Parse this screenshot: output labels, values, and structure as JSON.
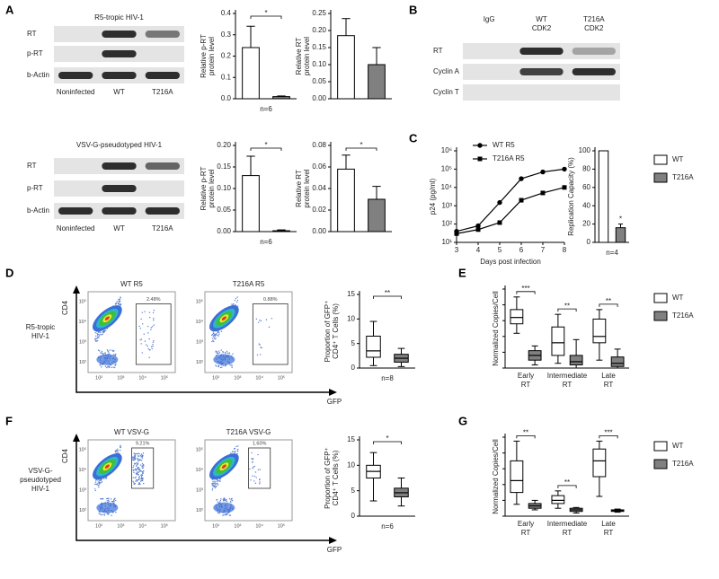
{
  "chart_data": [
    {
      "type": "bar",
      "ylabel": [
        "Relative p-RT",
        "protein level"
      ],
      "values": [
        0.24,
        0.01
      ],
      "errors": [
        0.1,
        0.003
      ],
      "colors": [
        "#ffffff",
        "#808080"
      ],
      "ylim": [
        0,
        0.4
      ],
      "yticks": [
        {
          "value": 0,
          "label": "0.0"
        },
        0.1,
        0.2,
        0.3,
        0.4
      ],
      "significance": "*",
      "xlabel": "n=6"
    },
    {
      "type": "bar",
      "ylabel": [
        "Relative RT",
        "protein level"
      ],
      "values": [
        0.185,
        0.1
      ],
      "errors": [
        0.05,
        0.05
      ],
      "colors": [
        "#ffffff",
        "#808080"
      ],
      "ylim": [
        0,
        0.25
      ],
      "yticks": [
        {
          "value": 0,
          "label": "0.00"
        },
        0.05,
        {
          "value": 0.1,
          "label": "0.10"
        },
        0.15,
        {
          "value": 0.2,
          "label": "0.20"
        },
        0.25
      ]
    },
    {
      "type": "bar",
      "ylabel": [
        "Relative p-RT",
        "protein level"
      ],
      "values": [
        0.13,
        0.002
      ],
      "errors": [
        0.045,
        0.002
      ],
      "colors": [
        "#ffffff",
        "#808080"
      ],
      "ylim": [
        0,
        0.2
      ],
      "yticks": [
        {
          "value": 0,
          "label": "0.00"
        },
        0.05,
        {
          "value": 0.1,
          "label": "0.10"
        },
        0.15,
        {
          "value": 0.2,
          "label": "0.20"
        }
      ],
      "significance": "*",
      "xlabel": "n=6"
    },
    {
      "type": "bar",
      "ylabel": [
        "Relative RT",
        "protein level"
      ],
      "values": [
        0.058,
        0.03
      ],
      "errors": [
        0.013,
        0.012
      ],
      "colors": [
        "#ffffff",
        "#808080"
      ],
      "ylim": [
        0,
        0.08
      ],
      "yticks": [
        {
          "value": 0,
          "label": "0.00"
        },
        0.02,
        0.04,
        0.06,
        0.08
      ],
      "significance": "*"
    },
    {
      "type": "line",
      "ylabel": "p24 (pg/ml)",
      "xlabel": "Days post infection",
      "x": [
        3,
        4,
        5,
        6,
        7,
        8
      ],
      "xlim": [
        3,
        8
      ],
      "xticks": [
        3,
        4,
        5,
        6,
        7,
        8
      ],
      "log_scale_y": true,
      "ylim": [
        10,
        1000000
      ],
      "yticks": [
        {
          "value": 10,
          "label": "10¹"
        },
        {
          "value": 100,
          "label": "10²"
        },
        {
          "value": 1000,
          "label": "10³"
        },
        {
          "value": 10000,
          "label": "10⁴"
        },
        {
          "value": 100000,
          "label": "10⁵"
        },
        {
          "value": 1000000,
          "label": "10⁶"
        }
      ],
      "legend": "upper left",
      "series": [
        {
          "name": "WT R5",
          "color": "#000000",
          "marker": "circle",
          "values": [
            40,
            80,
            1500,
            30000,
            70000,
            100000
          ]
        },
        {
          "name": "T216A R5",
          "color": "#000000",
          "marker": "square",
          "values": [
            30,
            50,
            120,
            2000,
            5000,
            10000
          ]
        }
      ]
    },
    {
      "type": "bar",
      "ylabel": "Replication Capacity (%)",
      "series": [
        {
          "name": "WT",
          "color": "#ffffff",
          "values": [
            100
          ]
        },
        {
          "name": "T216A",
          "color": "#808080",
          "values": [
            16
          ],
          "errors": [
            4
          ]
        }
      ],
      "ylim": [
        0,
        100
      ],
      "yticks": [
        0,
        20,
        40,
        60,
        80,
        100
      ],
      "significance": "*",
      "significance_bracket": false,
      "xlabel": "n=4",
      "legend": "right"
    },
    {
      "type": "box",
      "ylabel": [
        "Proportion of GFP⁺",
        "CD4⁺ T Cells (%)"
      ],
      "boxes": [
        {
          "min": 0.5,
          "q1": 2.2,
          "median": 3.5,
          "q3": 6.5,
          "max": 9.5
        },
        {
          "min": 0.3,
          "q1": 1.2,
          "median": 2,
          "q3": 2.8,
          "max": 4
        }
      ],
      "colors": [
        "#ffffff",
        "#808080"
      ],
      "ylim": [
        0,
        15
      ],
      "yticks": [
        0,
        5,
        10,
        15
      ],
      "significance": "**",
      "xlabel": "n=8"
    },
    {
      "type": "box",
      "ylabel": "Normalized Copies/Cell",
      "categories": [
        "Early",
        "Intermediate",
        "Late"
      ],
      "category_suffix": "RT",
      "ylim": [
        0,
        5
      ],
      "significance": [
        "***",
        "**",
        "**"
      ],
      "legend": "right",
      "series": [
        {
          "name": "WT",
          "color": "#ffffff",
          "boxes": [
            {
              "min": 2.2,
              "q1": 2.8,
              "median": 3.2,
              "q3": 3.7,
              "max": 4.5
            },
            {
              "min": 0.3,
              "q1": 0.8,
              "median": 1.6,
              "q3": 2.6,
              "max": 3.4
            },
            {
              "min": 0.5,
              "q1": 1.6,
              "median": 2,
              "q3": 3.1,
              "max": 3.7
            }
          ]
        },
        {
          "name": "T216A",
          "color": "#808080",
          "boxes": [
            {
              "min": 0.2,
              "q1": 0.5,
              "median": 0.8,
              "q3": 1.1,
              "max": 1.4
            },
            {
              "min": 0,
              "q1": 0.2,
              "median": 0.4,
              "q3": 0.8,
              "max": 1.8
            },
            {
              "min": 0,
              "q1": 0.1,
              "median": 0.3,
              "q3": 0.7,
              "max": 1.2
            }
          ]
        }
      ]
    },
    {
      "type": "box",
      "ylabel": [
        "Proportion of GFP⁺",
        "CD4⁺ T Cells (%)"
      ],
      "boxes": [
        {
          "min": 3,
          "q1": 7.5,
          "median": 8.8,
          "q3": 10,
          "max": 12.5
        },
        {
          "min": 2,
          "q1": 3.8,
          "median": 4.6,
          "q3": 5.5,
          "max": 7.5
        }
      ],
      "colors": [
        "#ffffff",
        "#808080"
      ],
      "ylim": [
        0,
        15
      ],
      "yticks": [
        0,
        5,
        10,
        15
      ],
      "significance": "*",
      "xlabel": "n=6"
    },
    {
      "type": "box",
      "ylabel": "Normalized Copies/Cell",
      "categories": [
        "Early",
        "Intermediate",
        "Late"
      ],
      "category_suffix": "RT",
      "ylim": [
        0,
        10
      ],
      "significance": [
        "**",
        "**",
        "***"
      ],
      "legend": "right",
      "series": [
        {
          "name": "WT",
          "color": "#ffffff",
          "boxes": [
            {
              "min": 1.5,
              "q1": 3,
              "median": 4.5,
              "q3": 7,
              "max": 9.5
            },
            {
              "min": 1,
              "q1": 1.6,
              "median": 2,
              "q3": 2.6,
              "max": 3.2
            },
            {
              "min": 2.5,
              "q1": 5,
              "median": 7,
              "q3": 8.5,
              "max": 9.5
            }
          ]
        },
        {
          "name": "T216A",
          "color": "#808080",
          "boxes": [
            {
              "min": 0.8,
              "q1": 1,
              "median": 1.3,
              "q3": 1.6,
              "max": 2
            },
            {
              "min": 0.4,
              "q1": 0.6,
              "median": 0.8,
              "q3": 1,
              "max": 1.1
            },
            {
              "min": 0.5,
              "q1": 0.6,
              "median": 0.7,
              "q3": 0.8,
              "max": 0.9
            }
          ]
        }
      ]
    }
  ],
  "figure": {
    "panel_labels": [
      "A",
      "B",
      "C",
      "D",
      "E",
      "F",
      "G"
    ],
    "blots": [
      {
        "title": "R5-tropic HIV-1",
        "rows": [
          "RT",
          "p-RT",
          "b-Actin"
        ],
        "lanes": [
          [
            "Noninfected"
          ],
          [
            "WT"
          ],
          [
            "T216A"
          ]
        ]
      },
      {
        "title": "VSV-G-pseudotyped HIV-1",
        "rows": [
          "RT",
          "p-RT",
          "b-Actin"
        ],
        "lanes": [
          [
            "Noninfected"
          ],
          [
            "WT"
          ],
          [
            "T216A"
          ]
        ]
      },
      {
        "rows": [
          "RT",
          "Cyclin A",
          "Cyclin T"
        ],
        "lanes": [
          [
            "IgG"
          ],
          [
            "WT",
            "CDK2"
          ],
          [
            "T216A",
            "CDK2"
          ]
        ]
      }
    ],
    "flow": {
      "y_axis": "CD4",
      "x_axis": "GFP",
      "ticks": [
        "10²",
        "10³",
        "10⁴",
        "10⁵"
      ],
      "rows": [
        {
          "label": [
            "R5-tropic",
            "HIV-1"
          ],
          "plots": [
            {
              "title": "WT R5",
              "gate": {
                "value": 2.48,
                "label": "2.48%"
              }
            },
            {
              "title": "T216A R5",
              "gate": {
                "value": 0.88,
                "label": "0.88%"
              }
            }
          ]
        },
        {
          "label": [
            "VSV-G-",
            "pseudotyped",
            "HIV-1"
          ],
          "plots": [
            {
              "title": "WT VSV-G",
              "gate": {
                "value": 9.21,
                "label": "9.21%"
              }
            },
            {
              "title": "T216A VSV-G",
              "gate": {
                "value": 1.6,
                "label": "1.60%"
              }
            }
          ]
        }
      ]
    }
  }
}
